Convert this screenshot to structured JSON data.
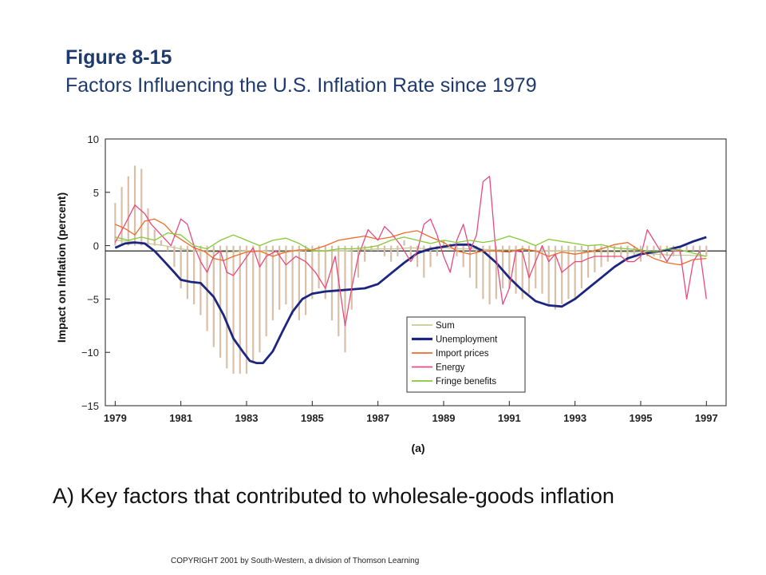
{
  "figure_label": "Figure 8-15",
  "figure_title": "Factors Influencing the U.S. Inflation Rate since 1979",
  "caption": "A) Key factors that contributed to wholesale-goods inflation",
  "copyright": "COPYRIGHT 2001 by South-Western, a division of Thomson Learning",
  "chart_data": {
    "type": "line",
    "panel_label": "(a)",
    "ylabel": "Impact on Inflation (percent)",
    "xlim": [
      1978.7,
      1997.6
    ],
    "ylim": [
      -15,
      10
    ],
    "x_ticks": [
      1979,
      1981,
      1983,
      1985,
      1987,
      1989,
      1991,
      1993,
      1995,
      1997
    ],
    "y_ticks": [
      10,
      5,
      0,
      -5,
      -10,
      -15
    ],
    "reference_line_y": -0.5,
    "grid": false,
    "legend_position": "lower-right",
    "bar_series": {
      "name": "Sum",
      "color": "#d9bfa8",
      "x": [
        1979.0,
        1979.2,
        1979.4,
        1979.6,
        1979.8,
        1980.0,
        1980.2,
        1980.4,
        1980.6,
        1980.8,
        1981.0,
        1981.2,
        1981.4,
        1981.6,
        1981.8,
        1982.0,
        1982.2,
        1982.4,
        1982.6,
        1982.8,
        1983.0,
        1983.2,
        1983.4,
        1983.6,
        1983.8,
        1984.0,
        1984.2,
        1984.4,
        1984.6,
        1984.8,
        1985.0,
        1985.2,
        1985.4,
        1985.6,
        1985.8,
        1986.0,
        1986.2,
        1986.4,
        1986.6,
        1986.8,
        1987.0,
        1987.2,
        1987.4,
        1987.6,
        1987.8,
        1988.0,
        1988.2,
        1988.4,
        1988.6,
        1988.8,
        1989.0,
        1989.2,
        1989.4,
        1989.6,
        1989.8,
        1990.0,
        1990.2,
        1990.4,
        1990.6,
        1990.8,
        1991.0,
        1991.2,
        1991.4,
        1991.6,
        1991.8,
        1992.0,
        1992.2,
        1992.4,
        1992.6,
        1992.8,
        1993.0,
        1993.2,
        1993.4,
        1993.6,
        1993.8,
        1994.0,
        1994.2,
        1994.4,
        1994.6,
        1994.8,
        1995.0,
        1995.2,
        1995.4,
        1995.6,
        1995.8,
        1996.0,
        1996.2,
        1996.4,
        1996.6,
        1996.8,
        1997.0
      ],
      "values": [
        4.0,
        5.5,
        6.5,
        7.5,
        7.2,
        3.5,
        1.5,
        0.5,
        -0.5,
        -2.0,
        -4.0,
        -5.0,
        -5.5,
        -6.5,
        -8.0,
        -9.5,
        -10.5,
        -11.5,
        -12.0,
        -12.0,
        -12.0,
        -11.0,
        -10.0,
        -8.5,
        -7.0,
        -6.0,
        -5.5,
        -6.5,
        -7.0,
        -6.5,
        -5.0,
        -4.0,
        -5.0,
        -7.0,
        -8.5,
        -10.0,
        -6.0,
        -3.0,
        -1.5,
        -0.5,
        -0.5,
        -1.0,
        -1.5,
        -1.0,
        0.5,
        -1.0,
        -2.0,
        -3.0,
        -2.0,
        -1.0,
        0.5,
        0.2,
        -1.0,
        -2.0,
        -3.0,
        -4.0,
        -5.0,
        -5.5,
        -5.0,
        -4.0,
        -4.0,
        -4.5,
        -5.0,
        -4.5,
        -4.0,
        -4.5,
        -5.5,
        -6.0,
        -5.5,
        -5.0,
        -5.0,
        -4.0,
        -3.0,
        -2.5,
        -2.0,
        -1.5,
        -1.2,
        -1.0,
        -1.5,
        -1.0,
        -1.5,
        -1.0,
        -1.0,
        -1.2,
        -1.0,
        -1.0,
        -0.8,
        -0.6,
        -0.5,
        -0.5,
        -1.0
      ]
    },
    "series": [
      {
        "name": "Sum",
        "color": "#c8c896",
        "width": 1.3,
        "x": [
          1979.0,
          1979.5,
          1980.0,
          1980.5,
          1981.0,
          1981.5,
          1982.0,
          1982.5,
          1983.0,
          1983.5,
          1984.0,
          1984.5,
          1985.0,
          1985.5,
          1986.0,
          1986.5,
          1987.0,
          1987.5,
          1988.0,
          1988.5,
          1989.0,
          1989.5,
          1990.0,
          1990.5,
          1991.0,
          1991.5,
          1992.0,
          1992.5,
          1993.0,
          1993.5,
          1994.0,
          1994.5,
          1995.0,
          1995.5,
          1996.0,
          1996.5,
          1997.0
        ],
        "y": [
          0.5,
          0.4,
          0.2,
          0.0,
          -0.3,
          -0.5,
          -0.6,
          -0.6,
          -0.5,
          -0.5,
          -0.6,
          -0.5,
          -0.4,
          -0.5,
          -0.5,
          -0.4,
          -0.3,
          -0.3,
          -0.2,
          -0.3,
          -0.2,
          -0.3,
          -0.3,
          -0.4,
          -0.4,
          -0.4,
          -0.5,
          -0.5,
          -0.5,
          -0.6,
          -0.6,
          -0.6,
          -0.7,
          -0.8,
          -0.9,
          -0.9,
          -1.0
        ]
      },
      {
        "name": "Unemployment",
        "color": "#1c2680",
        "width": 2.8,
        "x": [
          1979.0,
          1979.3,
          1979.6,
          1979.9,
          1980.2,
          1980.5,
          1980.8,
          1981.0,
          1981.3,
          1981.6,
          1982.0,
          1982.3,
          1982.6,
          1982.9,
          1983.1,
          1983.3,
          1983.5,
          1983.8,
          1984.1,
          1984.4,
          1984.7,
          1985.0,
          1985.4,
          1985.8,
          1986.2,
          1986.6,
          1987.0,
          1987.4,
          1987.8,
          1988.2,
          1988.6,
          1989.0,
          1989.4,
          1989.8,
          1990.2,
          1990.6,
          1991.0,
          1991.4,
          1991.8,
          1992.2,
          1992.6,
          1993.0,
          1993.4,
          1993.8,
          1994.2,
          1994.6,
          1995.0,
          1995.4,
          1995.8,
          1996.2,
          1996.6,
          1997.0
        ],
        "y": [
          -0.2,
          0.2,
          0.3,
          0.2,
          -0.5,
          -1.5,
          -2.5,
          -3.2,
          -3.4,
          -3.5,
          -4.8,
          -6.5,
          -8.7,
          -10.0,
          -10.8,
          -11.0,
          -11.0,
          -9.9,
          -8.0,
          -6.2,
          -5.0,
          -4.5,
          -4.3,
          -4.2,
          -4.1,
          -4.0,
          -3.6,
          -2.6,
          -1.6,
          -0.7,
          -0.3,
          -0.1,
          0.1,
          0.1,
          -0.5,
          -1.6,
          -3.0,
          -4.2,
          -5.2,
          -5.6,
          -5.7,
          -5.0,
          -4.0,
          -3.0,
          -2.0,
          -1.2,
          -0.8,
          -0.6,
          -0.4,
          -0.1,
          0.4,
          0.8
        ]
      },
      {
        "name": "Import prices",
        "color": "#ee6c2a",
        "width": 1.3,
        "x": [
          1979.0,
          1979.3,
          1979.6,
          1979.9,
          1980.2,
          1980.5,
          1980.8,
          1981.1,
          1981.4,
          1981.7,
          1982.0,
          1982.3,
          1982.6,
          1983.0,
          1983.4,
          1983.8,
          1984.2,
          1984.6,
          1985.0,
          1985.4,
          1985.8,
          1986.2,
          1986.6,
          1987.0,
          1987.4,
          1987.8,
          1988.2,
          1988.6,
          1989.0,
          1989.4,
          1989.8,
          1990.2,
          1990.6,
          1991.0,
          1991.4,
          1991.8,
          1992.2,
          1992.6,
          1993.0,
          1993.4,
          1993.8,
          1994.2,
          1994.6,
          1995.0,
          1995.4,
          1995.8,
          1996.2,
          1996.6,
          1997.0
        ],
        "y": [
          2.0,
          1.6,
          1.0,
          2.3,
          2.5,
          2.0,
          1.0,
          0.4,
          -0.2,
          -0.5,
          -1.2,
          -1.4,
          -1.0,
          -0.6,
          -0.5,
          -1.0,
          -0.6,
          -0.4,
          -0.4,
          0.0,
          0.5,
          0.7,
          0.9,
          0.6,
          0.8,
          1.2,
          1.4,
          0.8,
          0.3,
          -0.5,
          -0.8,
          -0.5,
          -0.5,
          -0.6,
          -0.3,
          -0.5,
          -1.0,
          -0.6,
          -0.8,
          -0.6,
          -0.3,
          0.1,
          0.3,
          -0.5,
          -1.2,
          -1.6,
          -1.8,
          -1.3,
          -1.2
        ]
      },
      {
        "name": "Energy",
        "color": "#e84a80",
        "width": 1.3,
        "x": [
          1979.0,
          1979.3,
          1979.6,
          1979.9,
          1980.1,
          1980.4,
          1980.7,
          1981.0,
          1981.2,
          1981.4,
          1981.6,
          1981.8,
          1982.0,
          1982.2,
          1982.4,
          1982.6,
          1982.9,
          1983.2,
          1983.4,
          1983.6,
          1983.9,
          1984.2,
          1984.5,
          1984.8,
          1985.1,
          1985.4,
          1985.7,
          1986.0,
          1986.2,
          1986.4,
          1986.7,
          1987.0,
          1987.2,
          1987.4,
          1987.7,
          1988.0,
          1988.2,
          1988.4,
          1988.6,
          1988.8,
          1989.0,
          1989.2,
          1989.4,
          1989.6,
          1989.8,
          1990.0,
          1990.2,
          1990.4,
          1990.6,
          1990.8,
          1991.0,
          1991.2,
          1991.4,
          1991.6,
          1991.8,
          1992.0,
          1992.2,
          1992.4,
          1992.6,
          1992.8,
          1993.0,
          1993.2,
          1993.4,
          1993.6,
          1993.8,
          1994.0,
          1994.2,
          1994.4,
          1994.6,
          1994.8,
          1995.0,
          1995.2,
          1995.4,
          1995.6,
          1995.8,
          1996.0,
          1996.2,
          1996.4,
          1996.6,
          1996.8,
          1997.0
        ],
        "y": [
          0.3,
          2.0,
          3.8,
          3.0,
          2.0,
          1.0,
          0.0,
          2.5,
          2.0,
          0.0,
          -1.5,
          -2.5,
          -1.0,
          -0.5,
          -2.5,
          -2.8,
          -1.5,
          -0.2,
          -2.0,
          -1.0,
          -0.5,
          -1.8,
          -1.0,
          -1.5,
          -2.5,
          -4.0,
          -1.0,
          -7.5,
          -4.0,
          -1.0,
          1.5,
          0.5,
          1.8,
          1.2,
          0.0,
          -1.5,
          -0.5,
          2.0,
          2.5,
          1.0,
          -1.0,
          -2.5,
          0.5,
          2.0,
          -0.5,
          1.0,
          6.0,
          6.5,
          -1.0,
          -5.5,
          -4.0,
          -0.5,
          -0.6,
          -3.0,
          -1.5,
          0.0,
          -1.5,
          -0.8,
          -2.5,
          -2.0,
          -1.5,
          -1.5,
          -1.2,
          -1.0,
          -1.0,
          -1.0,
          -1.0,
          -1.0,
          -1.5,
          -1.5,
          -1.0,
          1.5,
          0.5,
          -0.5,
          -1.5,
          -0.5,
          -0.5,
          -5.0,
          -1.5,
          -0.5,
          -5.0
        ]
      },
      {
        "name": "Fringe benefits",
        "color": "#86c838",
        "width": 1.3,
        "x": [
          1979.0,
          1979.4,
          1979.8,
          1980.2,
          1980.6,
          1981.0,
          1981.4,
          1981.8,
          1982.2,
          1982.6,
          1983.0,
          1983.4,
          1983.8,
          1984.2,
          1984.6,
          1985.0,
          1985.4,
          1985.8,
          1986.2,
          1986.6,
          1987.0,
          1987.4,
          1987.8,
          1988.2,
          1988.6,
          1989.0,
          1989.4,
          1989.8,
          1990.2,
          1990.6,
          1991.0,
          1991.4,
          1991.8,
          1992.2,
          1992.6,
          1993.0,
          1993.4,
          1993.8,
          1994.2,
          1994.6,
          1995.0,
          1995.4,
          1995.8,
          1996.2,
          1996.6,
          1997.0
        ],
        "y": [
          0.8,
          0.5,
          0.8,
          0.5,
          1.2,
          1.0,
          0.0,
          -0.3,
          0.5,
          1.0,
          0.5,
          0.0,
          0.5,
          0.7,
          0.2,
          -0.5,
          -0.5,
          -0.3,
          -0.3,
          -0.2,
          0.0,
          0.5,
          0.8,
          0.5,
          0.2,
          0.5,
          0.3,
          0.5,
          0.3,
          0.5,
          0.9,
          0.5,
          0.0,
          0.6,
          0.4,
          0.2,
          0.0,
          0.1,
          -0.2,
          -0.3,
          -0.4,
          -0.6,
          -0.3,
          -0.4,
          -0.7,
          -1.0
        ]
      }
    ]
  }
}
